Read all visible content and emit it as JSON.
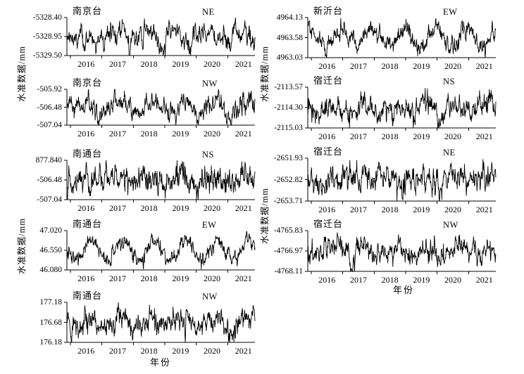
{
  "figure": {
    "background": "#ffffff",
    "line_color": "#000000",
    "text_color": "#000000"
  },
  "chart_data": {
    "type": "line",
    "title": "",
    "xlabel": "年份",
    "ylabel": "水准数据/mm",
    "x_tick_labels": [
      "2016",
      "2017",
      "2018",
      "2019",
      "2020",
      "2021"
    ],
    "x_range_years": [
      2015.9,
      2021.85
    ],
    "grid": false,
    "legend": "none",
    "series_note": "dense unlabeled daily leveling series; rendered as synthetic noisy seasonal line matching visual envelope",
    "panels": [
      {
        "station": "南京台",
        "component": "NE",
        "y_tick_labels": [
          "-5328.40",
          "-5328.95",
          "-5329.50"
        ],
        "y_ticks_numeric": [
          -5328.4,
          -5328.95,
          -5329.5
        ],
        "series_model": {
          "seed": 11,
          "seasonal_amp": 0.25,
          "noise": 0.27,
          "ar": 0.72,
          "phase": 0.15,
          "points": 600
        }
      },
      {
        "station": "南京台",
        "component": "NW",
        "y_tick_labels": [
          "-505.92",
          "-506.48",
          "-507.04"
        ],
        "y_ticks_numeric": [
          -505.92,
          -506.48,
          -507.04
        ],
        "series_model": {
          "seed": 22,
          "seasonal_amp": 0.28,
          "noise": 0.3,
          "ar": 0.7,
          "phase": 0.35,
          "points": 600
        }
      },
      {
        "station": "南通台",
        "component": "NS",
        "y_tick_labels": [
          "877.840",
          "-506.48",
          "-507.04"
        ],
        "y_ticks_numeric": [
          877.84,
          -506.48,
          -507.04
        ],
        "series_model": {
          "seed": 33,
          "seasonal_amp": 0.18,
          "noise": 0.34,
          "ar": 0.6,
          "phase": 0.3,
          "points": 600
        }
      },
      {
        "station": "南通台",
        "component": "EW",
        "y_tick_labels": [
          "47.020",
          "46.550",
          "46.080"
        ],
        "y_ticks_numeric": [
          47.02,
          46.55,
          46.08
        ],
        "series_model": {
          "seed": 44,
          "seasonal_amp": 0.58,
          "noise": 0.2,
          "ar": 0.55,
          "phase": 0.42,
          "points": 600
        }
      },
      {
        "station": "南通台",
        "component": "NW",
        "y_tick_labels": [
          "177.18",
          "176.68",
          "176.18"
        ],
        "y_ticks_numeric": [
          177.18,
          176.68,
          176.18
        ],
        "series_model": {
          "seed": 55,
          "seasonal_amp": 0.26,
          "noise": 0.28,
          "ar": 0.62,
          "phase": 0.35,
          "points": 600
        }
      },
      {
        "station": "新沂台",
        "component": "EW",
        "y_tick_labels": [
          "4964.13",
          "4963.58",
          "4963.03"
        ],
        "y_ticks_numeric": [
          4964.13,
          4963.58,
          4963.03
        ],
        "series_model": {
          "seed": 66,
          "seasonal_amp": 0.55,
          "noise": 0.23,
          "ar": 0.55,
          "phase": 0.7,
          "points": 600
        }
      },
      {
        "station": "宿迁台",
        "component": "NS",
        "y_tick_labels": [
          "-2113.57",
          "-2114.30",
          "-2115.03"
        ],
        "y_ticks_numeric": [
          -2113.57,
          -2114.3,
          -2115.03
        ],
        "series_model": {
          "seed": 77,
          "seasonal_amp": 0.32,
          "noise": 0.29,
          "ar": 0.62,
          "phase": 0.45,
          "points": 600
        }
      },
      {
        "station": "宿迁台",
        "component": "NE",
        "y_tick_labels": [
          "-2651.93",
          "-2652.82",
          "-2653.71"
        ],
        "y_ticks_numeric": [
          -2651.93,
          -2652.82,
          -2653.71
        ],
        "series_model": {
          "seed": 88,
          "seasonal_amp": 0.18,
          "noise": 0.31,
          "ar": 0.7,
          "phase": 0.4,
          "points": 600
        }
      },
      {
        "station": "宿迁台",
        "component": "NW",
        "y_tick_labels": [
          "-4765.83",
          "-4766.97",
          "-4768.11"
        ],
        "y_ticks_numeric": [
          -4765.83,
          -4766.97,
          -4768.11
        ],
        "series_model": {
          "seed": 99,
          "seasonal_amp": 0.26,
          "noise": 0.27,
          "ar": 0.68,
          "phase": 0.45,
          "points": 600
        }
      }
    ]
  }
}
